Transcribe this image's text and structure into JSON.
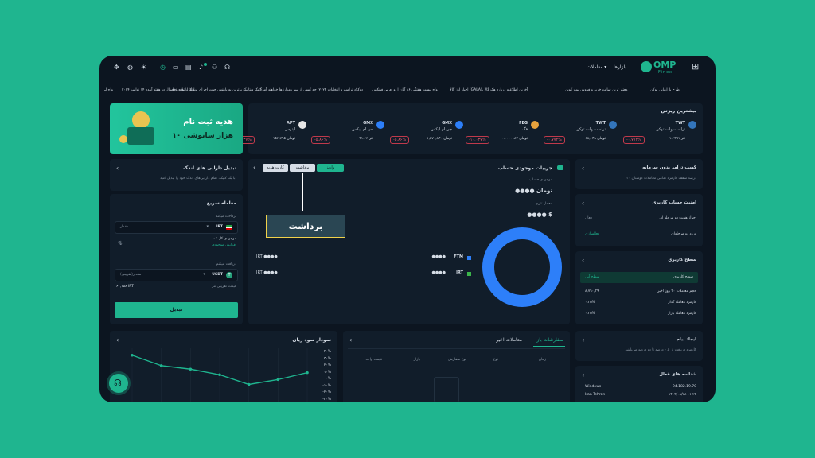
{
  "header": {
    "logo_main": "OMP",
    "logo_sub": "Finex",
    "nav_markets": "بازارها",
    "nav_trades": "معاملات ▾"
  },
  "ticker": [
    "طرح بازاریابی توکن",
    "معتبر ترین سایت خرید و فروش بیت کوین",
    "اخبار ارز گالا (GALA)، آخرین اطلاعیه درباره هک گالا",
    "واچ لیست هفتگی ۱۶ آبان | او ام پی فینکس",
    "دوکلاد ترامپ و انتخابات ۲۰۲۴؛ چه کسی از سر رمزارزها خواهند آمد؟",
    "کمک ویتالیک بوترین به بایننس جهت اجرای پروتکل اثبات ذخایر",
    "بازار ارزهای دیجیتال در هفته آینده ۱۴ نوامبر ۲۰۲۴",
    "واچ لی"
  ],
  "top_gainers": {
    "title": "بیشترین ریزش",
    "coins": [
      {
        "symbol": "TWT",
        "name": "تراست ولت توکن",
        "value": "۱.۶۳۹۱ تتر",
        "change": "-۰.۷۷۲%",
        "icon": "shield-icon",
        "color": "#3375bb"
      },
      {
        "symbol": "TWT",
        "name": "تراست ولت توکن",
        "value": "۶۸,۰۳۸ تومان",
        "change": "-۰.۷۷۲%",
        "icon": "shield-icon",
        "color": "#3375bb"
      },
      {
        "symbol": "FEG",
        "name": "فگ",
        "value": "۰.۰۰۰۰۱۸۷ تومان",
        "change": "-۱۰.۰۳۷%",
        "icon": "flame-icon",
        "color": "#e8a33d"
      },
      {
        "symbol": "GMX",
        "name": "جی ام ایکس",
        "value": "۱,۵۷۰,۸۳۰ تومان",
        "change": "-۵.۸۶%",
        "icon": "triangle-icon",
        "color": "#2d7ff9"
      },
      {
        "symbol": "GMX",
        "name": "جی ام ایکس",
        "value": "۳۱.۶۶ تتر",
        "change": "-۵.۸۶%",
        "icon": "triangle-icon",
        "color": "#2d7ff9"
      },
      {
        "symbol": "APT",
        "name": "اپتوس",
        "value": "۱۵۶,۷۹۵ تومان",
        "change": "-۷.۴۳۷%",
        "icon": "aptos-icon",
        "color": "#e6e6e6"
      }
    ]
  },
  "banner": {
    "line1": "هدیه ثبت نام",
    "line2": "۱۰ هزار ساتوشی"
  },
  "convert_assets": {
    "title": "تبدیل دارایی های اندک",
    "desc": "با یک کلیک، تمام دارایی‌های اندک خود را تبدیل کنید."
  },
  "quick_trade": {
    "title": "معامله سریع",
    "pay_label": "پرداخت میکنم",
    "pay_currency": "IRT",
    "pay_placeholder": "مقدار",
    "balance_label": "موجودی کل : ۰",
    "increase_balance": "افزایش موجودی",
    "receive_label": "دریافت میکنم",
    "receive_currency": "USDT",
    "receive_placeholder": "مقدار(تقریبی)",
    "rate_label": "قیمت تقریبی تتر",
    "rate_value": "۶۳,۱۵۸ IRT",
    "submit": "تبدیل"
  },
  "wallet": {
    "title": "جزییات موجودی حساب",
    "tab_deposit": "واریز",
    "tab_withdraw": "برداشت",
    "tab_gift": "کارت هدیه",
    "balance_label": "موجودی حساب",
    "balance_value": "●●●● تومان",
    "tether_label": "معادل تتری",
    "tether_value": "●●●● $",
    "rows": [
      {
        "currency": "FTM",
        "amount": "●●●●",
        "irt": "IRT ●●●●",
        "color": "#2d7ff9"
      },
      {
        "currency": "IRT",
        "amount": "●●●●",
        "irt": "IRT ●●●●",
        "color": "#3bb54a"
      }
    ],
    "tooltip": "برداشت"
  },
  "income": {
    "title": "کسب درآمد بدون سرمایه",
    "desc": "۳۰ درصد سقف کارمزد تمامی معاملات دوستان"
  },
  "security": {
    "title": "امنیت حساب کاربری",
    "row1_label": "احراز هویت دو مرحله ای",
    "row1_status": "فعال",
    "row2_label": "ورود دو مرحله‌ای",
    "row2_status": "فعالسازی"
  },
  "user_level": {
    "title": "سطح کاربری",
    "level_label": "سطح کاربری",
    "level_value": "سطح آبی",
    "rows": [
      {
        "label": "حجم معاملات ۳۰ روز اخیر",
        "value": "۸,۷۹۰,۳۹"
      },
      {
        "label": "کارمزد معاملهٔ گذار",
        "value": "۰.۳۵%"
      },
      {
        "label": "کارمزد معاملهٔ بازار",
        "value": "۰.۳۵%"
      }
    ]
  },
  "alerts": {
    "title": "ایجاد پیام",
    "desc": "کارمزد دریافت از ۰.۵ درصد تا دو درصد می‌باشد"
  },
  "sessions": {
    "title": "شناسه های فعال",
    "os": "Windows",
    "ip": "94.182.19.70",
    "location": "Iran Tehran",
    "time": "۱۴۰۳/۰۸/۲۸ ۰۱:۲۳"
  },
  "orders": {
    "tab_open": "سفارشات باز",
    "tab_recent": "معاملات اخیر",
    "cols": [
      "زمان",
      "نوع",
      "نوع سفارش",
      "بازار",
      "قیمت واحد"
    ]
  },
  "pnl_chart": {
    "title": "نمودار سود زیان",
    "ticks": [
      "۴۰%",
      "۳۰%",
      "۲۰%",
      "۱۰%",
      "۰%",
      "-۱۰%",
      "-۲۰%",
      "-۳۰%",
      "-۴۰%"
    ]
  },
  "chart_data": {
    "type": "line",
    "x": [
      1,
      2,
      3,
      4,
      5,
      6,
      7
    ],
    "y": [
      30,
      15,
      10,
      2,
      -12,
      -5,
      5
    ],
    "ylim": [
      -40,
      40
    ]
  }
}
